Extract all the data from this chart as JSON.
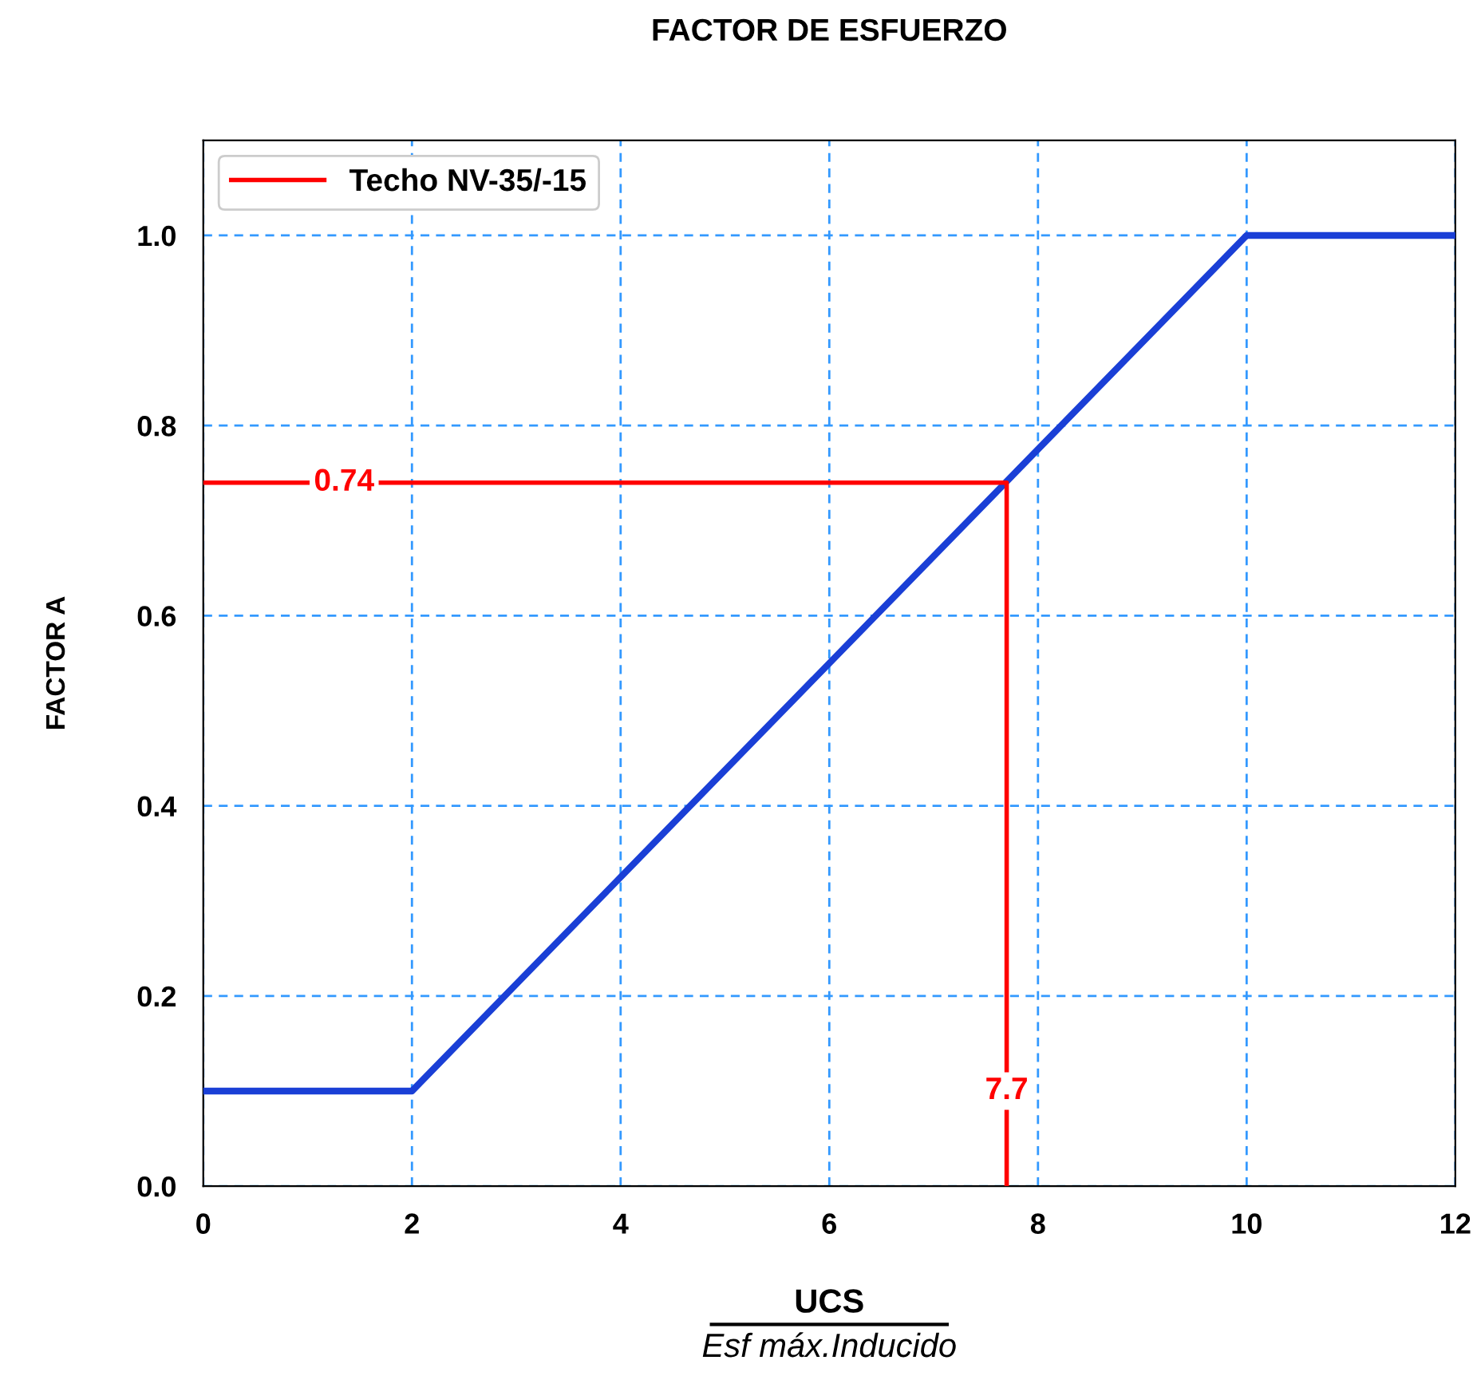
{
  "chart_data": {
    "type": "line",
    "title": "FACTOR DE ESFUERZO",
    "xlabel": "UCS",
    "ylabel": "FACTOR A",
    "annotations": [
      {
        "text": "0.74",
        "x": 1.35,
        "y": 0.74
      },
      {
        "text": "7.7",
        "x": 7.7,
        "y": 0.1
      },
      "Esf máx.Inducido"
    ],
    "series": [
      {
        "color": "#1a3fd6",
        "x": [
          0,
          2,
          10,
          12
        ],
        "values": [
          0.1,
          0.1,
          1.0,
          1.0
        ]
      },
      {
        "name": "Techo NV-35/-15",
        "color": "#ff0000",
        "x": [
          0,
          7.7,
          7.7
        ],
        "values": [
          0.74,
          0.74,
          0
        ]
      }
    ],
    "xlim": [
      0,
      12
    ],
    "xticks": [
      0,
      2,
      4,
      6,
      8,
      10,
      12
    ],
    "ylim": [
      0,
      1.1
    ],
    "yticks": [
      {
        "value": 0,
        "label": "0.0"
      },
      {
        "value": 0.2,
        "label": "0.2"
      },
      {
        "value": 0.4,
        "label": "0.4"
      },
      {
        "value": 0.6,
        "label": "0.6"
      },
      {
        "value": 0.8,
        "label": "0.8"
      },
      {
        "value": 1.0,
        "label": "1.0"
      }
    ],
    "grid": true,
    "legend": "top left",
    "marker": "none",
    "line_style": "solid"
  }
}
